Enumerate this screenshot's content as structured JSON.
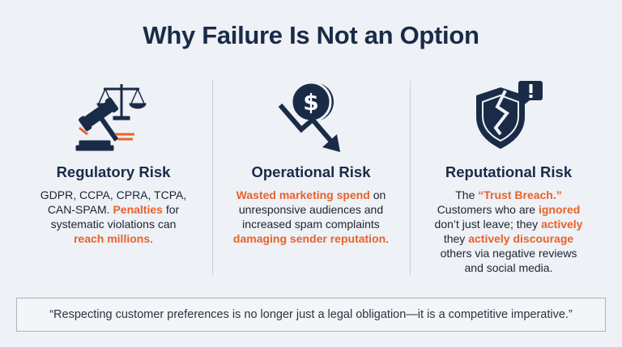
{
  "title": "Why Failure Is Not an Option",
  "columns": [
    {
      "heading": "Regulatory Risk",
      "body": [
        [
          "GDPR, CCPA, CPRA, TCPA,"
        ],
        [
          "CAN-SPAM. ",
          {
            "text": "Penalties",
            "accent": true
          },
          " for"
        ],
        [
          "systematic violations can"
        ],
        [
          {
            "text": "reach millions",
            "accent": true
          },
          "."
        ]
      ]
    },
    {
      "heading": "Operational Risk",
      "body": [
        [
          {
            "text": "Wasted marketing spend",
            "accent": true
          },
          " on"
        ],
        [
          "unresponsive audiences and"
        ],
        [
          "increased spam complaints"
        ],
        [
          {
            "text": "damaging sender reputation",
            "accent": true
          },
          "."
        ]
      ]
    },
    {
      "heading": "Reputational Risk",
      "body": [
        [
          "The ",
          {
            "text": "“Trust Breach.”",
            "accent": true
          }
        ],
        [
          "Customers who are ",
          {
            "text": "ignored",
            "accent": true
          }
        ],
        [
          "don’t just leave; they ",
          {
            "text": "actively",
            "accent": true
          }
        ],
        [
          "they ",
          {
            "text": "actively discourage",
            "accent": true
          }
        ],
        [
          "others via negative reviews"
        ],
        [
          "and social media."
        ]
      ]
    }
  ],
  "quote": "“Respecting customer preferences is no longer just a legal obligation—it is a competitive imperative.”"
}
